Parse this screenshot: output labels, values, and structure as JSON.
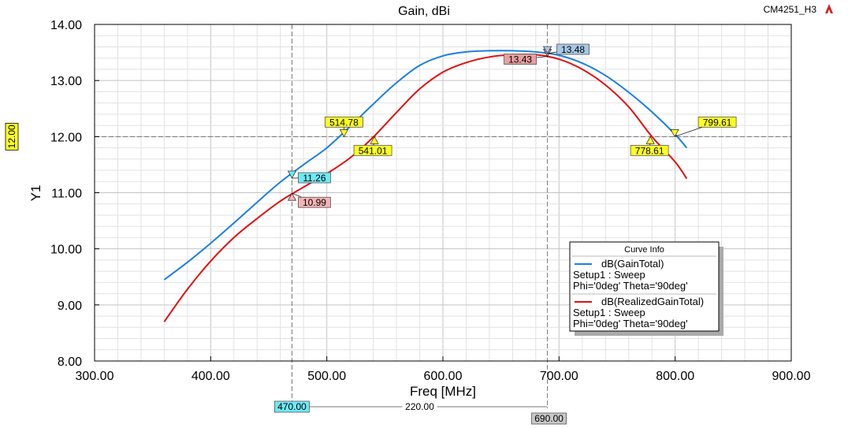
{
  "chart_data": {
    "type": "line",
    "title": "Gain, dBi",
    "project_label": "CM4251_H3",
    "xlabel": "Freq [MHz]",
    "ylabel": "Y1",
    "xlim": [
      300,
      900
    ],
    "ylim": [
      8,
      14
    ],
    "x_ticks": [
      "300.00",
      "400.00",
      "500.00",
      "600.00",
      "700.00",
      "800.00",
      "900.00"
    ],
    "y_ticks": [
      "8.00",
      "9.00",
      "10.00",
      "11.00",
      "12.00",
      "13.00",
      "14.00"
    ],
    "grid": true,
    "legend": {
      "header": "Curve Info",
      "placement": "bottom-right",
      "entries": [
        {
          "name": "dB(GainTotal)",
          "line2": "Setup1 : Sweep",
          "line3": "Phi='0deg' Theta='90deg'",
          "color": "#1a7fe0"
        },
        {
          "name": "dB(RealizedGainTotal)",
          "line2": "Setup1 : Sweep",
          "line3": "Phi='0deg' Theta='90deg'",
          "color": "#e01010"
        }
      ]
    },
    "series": [
      {
        "name": "dB(GainTotal)",
        "color": "#1a7fe0",
        "x": [
          360,
          380,
          400,
          420,
          440,
          460,
          480,
          500,
          520,
          540,
          560,
          580,
          600,
          620,
          640,
          660,
          680,
          700,
          720,
          740,
          760,
          780,
          800,
          810
        ],
        "y": [
          9.45,
          9.76,
          10.1,
          10.46,
          10.83,
          11.19,
          11.5,
          11.8,
          12.18,
          12.58,
          12.96,
          13.27,
          13.44,
          13.51,
          13.53,
          13.53,
          13.51,
          13.45,
          13.31,
          13.09,
          12.79,
          12.44,
          12.04,
          11.8
        ]
      },
      {
        "name": "dB(RealizedGainTotal)",
        "color": "#e01010",
        "x": [
          360,
          380,
          400,
          420,
          440,
          460,
          480,
          500,
          520,
          540,
          560,
          580,
          600,
          620,
          640,
          660,
          680,
          700,
          720,
          740,
          760,
          780,
          800,
          810
        ],
        "y": [
          8.7,
          9.28,
          9.78,
          10.2,
          10.54,
          10.85,
          11.1,
          11.34,
          11.62,
          11.99,
          12.43,
          12.85,
          13.15,
          13.32,
          13.42,
          13.46,
          13.46,
          13.38,
          13.2,
          12.92,
          12.53,
          12.0,
          11.55,
          11.25
        ]
      }
    ],
    "reference_lines": {
      "x": [
        470,
        690
      ],
      "y": [
        12.0
      ]
    },
    "y_reference_label": "12.00",
    "markers": [
      {
        "text": "11.26",
        "x": 470,
        "y": 11.26,
        "series": 0,
        "color": "#6fe9f4"
      },
      {
        "text": "10.99",
        "x": 470,
        "y": 10.99,
        "series": 1,
        "color": "#f4b4b4"
      },
      {
        "text": "514.78",
        "x": 514.78,
        "y": 12.0,
        "series": 0,
        "color": "#ffff22"
      },
      {
        "text": "541.01",
        "x": 541.01,
        "y": 12.0,
        "series": 1,
        "color": "#ffff22"
      },
      {
        "text": "13.43",
        "x": 690,
        "y": 13.43,
        "series": 1,
        "color": "#e8a0a0"
      },
      {
        "text": "13.48",
        "x": 690,
        "y": 13.48,
        "series": 0,
        "color": "#a6c8e6"
      },
      {
        "text": "799.61",
        "x": 799.61,
        "y": 12.0,
        "series": 0,
        "color": "#ffff22"
      },
      {
        "text": "778.61",
        "x": 778.61,
        "y": 12.0,
        "series": 1,
        "color": "#ffff22"
      }
    ],
    "x_markers": [
      {
        "text": "470.00",
        "x": 470,
        "color": "#6fe9f4"
      },
      {
        "text": "690.00",
        "x": 690,
        "color": "#c8c8c8"
      }
    ],
    "delta_label": "220.00"
  }
}
